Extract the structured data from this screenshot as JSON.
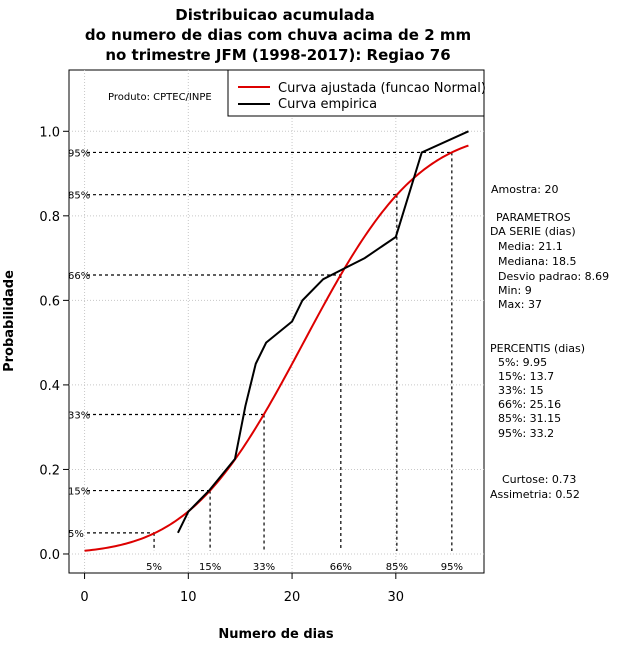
{
  "chart_data": {
    "type": "line",
    "title": [
      "Distribuicao acumulada",
      "do numero de dias com chuva acima de 2 mm",
      "no trimestre JFM (1998-2017): Regiao 76"
    ],
    "xlabel": "Numero de dias",
    "ylabel": "Probabilidade",
    "xlim": [
      -1.5,
      38.5
    ],
    "ylim": [
      -0.045,
      1.145
    ],
    "xticks": [
      0,
      10,
      20,
      30
    ],
    "xtick_labels": [
      "0",
      "10",
      "20",
      "30"
    ],
    "yticks": [
      0.0,
      0.2,
      0.4,
      0.6,
      0.8,
      1.0
    ],
    "ytick_labels": [
      "0.0",
      "0.2",
      "0.4",
      "0.6",
      "0.8",
      "1.0"
    ],
    "grid": true,
    "legend_position": "top-right",
    "product_label": "Produto: CPTEC/INPE",
    "series": [
      {
        "name": "Curva ajustada (funcao Normal)",
        "color": "#dd0000",
        "kind": "normal_cdf",
        "mean": 21.1,
        "sd": 8.69,
        "x_range": [
          0,
          37
        ]
      },
      {
        "name": "Curva empirica",
        "color": "#000000",
        "x": [
          9,
          10,
          12,
          14.5,
          15.5,
          16.5,
          17.5,
          20,
          21,
          23,
          25,
          27,
          30,
          32.5,
          37
        ],
        "y": [
          0.05,
          0.1,
          0.15,
          0.225,
          0.35,
          0.45,
          0.5,
          0.55,
          0.6,
          0.65,
          0.675,
          0.7,
          0.75,
          0.95,
          1.0
        ]
      }
    ],
    "percentile_lines": [
      {
        "label_y": "5%",
        "label_x": "5%",
        "prob": 0.05,
        "value": 6.7
      },
      {
        "label_y": "15%",
        "label_x": "15%",
        "prob": 0.15,
        "value": 12.1
      },
      {
        "label_y": "33%",
        "label_x": "33%",
        "prob": 0.33,
        "value": 17.3
      },
      {
        "label_y": "66%",
        "label_x": "66%",
        "prob": 0.66,
        "value": 24.7
      },
      {
        "label_y": "85%",
        "label_x": "85%",
        "prob": 0.85,
        "value": 30.1
      },
      {
        "label_y": "95%",
        "label_x": "95%",
        "prob": 0.95,
        "value": 35.4
      }
    ]
  },
  "side_panel": {
    "amostra": "Amostra: 20",
    "parametros_title_1": "PARAMETROS",
    "parametros_title_2": "DA SERIE (dias)",
    "media": "Media: 21.1",
    "mediana": "Mediana: 18.5",
    "desvio": "Desvio padrao: 8.69",
    "min": "Min: 9",
    "max": "Max: 37",
    "percentis_title": "PERCENTIS (dias)",
    "p5": "5%: 9.95",
    "p15": "15%: 13.7",
    "p33": "33%: 15",
    "p66": "66%: 25.16",
    "p85": "85%: 31.15",
    "p95": "95%: 33.2",
    "curtose": "Curtose: 0.73",
    "assimetria": "Assimetria: 0.52"
  }
}
